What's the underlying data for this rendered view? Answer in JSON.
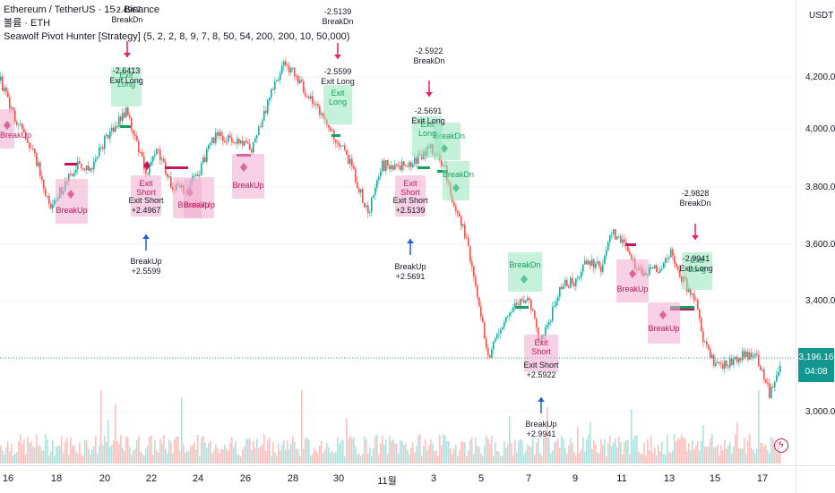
{
  "legend": {
    "symbol": "Ethereum / TetherUS · 15 · Binance",
    "line2": "볼륨 · ETH",
    "strategy": "Seawolf Pivot Hunter [Strategy] (5, 2, 2, 8, 9, 7, 8, 50, 54, 200, 200, 10, 50,000)"
  },
  "price_scale": {
    "unit": "USDT",
    "ticks": [
      "4,200.00",
      "4,000.00",
      "3,800.00",
      "3,600.00",
      "3,400.00",
      "3,000.00"
    ],
    "current_price": "3,196.16",
    "countdown": "04:08"
  },
  "time_scale": {
    "labels": [
      "16",
      "18",
      "20",
      "22",
      "24",
      "26",
      "28",
      "30",
      "11월",
      "3",
      "5",
      "7",
      "9",
      "11",
      "13",
      "15",
      "17"
    ]
  },
  "colors": {
    "up": "#26a69a",
    "down": "#ef5350",
    "breakup_box": "#f0aacd",
    "breakdn_box": "#96e6be",
    "pivot_line_pink": "#c2185b",
    "pivot_line_green": "#16a05f",
    "arrow_up": "#1e63d6",
    "arrow_down": "#e91e63"
  },
  "signals": [
    {
      "label": "BreakUp",
      "type": "breakup"
    },
    {
      "label": "BreakUp",
      "type": "breakup"
    },
    {
      "label": "BreakUp",
      "type": "breakup"
    },
    {
      "label": "BreakUp",
      "type": "breakup"
    },
    {
      "label": "BreakUp",
      "type": "breakup"
    },
    {
      "label": "BreakUp",
      "type": "breakup"
    },
    {
      "label": "BreakUp",
      "type": "breakup"
    },
    {
      "label": "BreakDn",
      "type": "breakdn"
    },
    {
      "label": "BreakDn",
      "type": "breakdn"
    },
    {
      "label": "BreakDn",
      "type": "breakdn"
    },
    {
      "label": "Exit Long",
      "type": "breakdn"
    },
    {
      "label": "Exit Long",
      "type": "breakdn"
    },
    {
      "label": "Exit Long",
      "type": "breakdn"
    },
    {
      "label": "Exit Long",
      "type": "breakdn"
    },
    {
      "label": "Exit Short",
      "type": "breakup"
    },
    {
      "label": "Exit Short",
      "type": "breakup"
    },
    {
      "label": "Exit Short",
      "type": "breakup"
    }
  ],
  "notes": [
    {
      "l1": "-2.4967",
      "l2": "BreakDn"
    },
    {
      "l1": "-2.6413",
      "l2": "Exit Long"
    },
    {
      "l1": "Exit Short",
      "l2": "+2.4967"
    },
    {
      "l1": "BreakUp",
      "l2": "+2.5599"
    },
    {
      "l1": "-2.5139",
      "l2": "BreakDn"
    },
    {
      "l1": "-2.5599",
      "l2": "Exit Long"
    },
    {
      "l1": "-2.5922",
      "l2": "BreakDn"
    },
    {
      "l1": "-2.5691",
      "l2": "Exit Long"
    },
    {
      "l1": "Exit Short",
      "l2": "+2.5139"
    },
    {
      "l1": "BreakUp",
      "l2": "+2.5691"
    },
    {
      "l1": "Exit Short",
      "l2": "+2.5922"
    },
    {
      "l1": "BreakUp",
      "l2": "+2.9941"
    },
    {
      "l1": "-2.9828",
      "l2": "BreakDn"
    },
    {
      "l1": "-2.9941",
      "l2": "Exit Long"
    }
  ]
}
